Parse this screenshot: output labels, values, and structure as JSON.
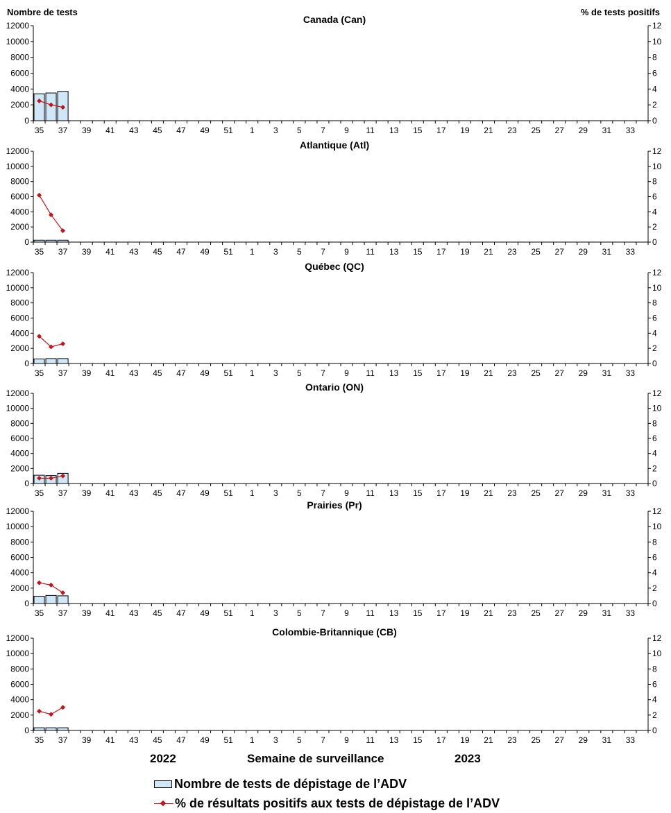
{
  "left_axis_title": "Nombre de tests",
  "right_axis_title": "% de tests positifs",
  "xlabel": "Semaine de surveillance",
  "year_labels": [
    "2022",
    "2023"
  ],
  "legend": {
    "bar_label": "Nombre de tests de dépistage de l’ADV",
    "line_label": "% de résultats positifs aux tests de dépistage de l’ADV"
  },
  "colors": {
    "bar_fill": "#cfe8f8",
    "bar_stroke": "#000000",
    "line": "#c0151b"
  },
  "chart_data": [
    {
      "type": "bar+line",
      "title": "Canada (Can)",
      "weeks": [
        35,
        36,
        37,
        38,
        39,
        40,
        41,
        42,
        43,
        44,
        45,
        46,
        47,
        48,
        49,
        50,
        51,
        52,
        1,
        2,
        3,
        4,
        5,
        6,
        7,
        8,
        9,
        10,
        11,
        12,
        13,
        14,
        15,
        16,
        17,
        18,
        19,
        20,
        21,
        22,
        23,
        24,
        25,
        26,
        27,
        28,
        29,
        30,
        31,
        32,
        33,
        34
      ],
      "tick_labels": [
        "35",
        "37",
        "39",
        "41",
        "43",
        "45",
        "47",
        "49",
        "51",
        "1",
        "3",
        "5",
        "7",
        "9",
        "11",
        "13",
        "15",
        "17",
        "19",
        "21",
        "23",
        "25",
        "27",
        "29",
        "31",
        "33"
      ],
      "y_left_ticks": [
        "0",
        "2000",
        "4000",
        "6000",
        "8000",
        "10000",
        "12000"
      ],
      "y_right_ticks": [
        "0",
        "2",
        "4",
        "6",
        "8",
        "10",
        "12"
      ],
      "ylim_left": [
        0,
        12000
      ],
      "ylim_right": [
        0,
        12
      ],
      "tests": [
        3400,
        3500,
        3700
      ],
      "percent_positive": [
        2.5,
        2.0,
        1.7
      ]
    },
    {
      "type": "bar+line",
      "title": "Atlantique (Atl)",
      "tick_labels": [
        "35",
        "37",
        "39",
        "41",
        "43",
        "45",
        "47",
        "49",
        "51",
        "1",
        "3",
        "5",
        "7",
        "9",
        "11",
        "13",
        "15",
        "17",
        "19",
        "21",
        "23",
        "25",
        "27",
        "29",
        "31",
        "33"
      ],
      "y_left_ticks": [
        "0",
        "2000",
        "4000",
        "6000",
        "8000",
        "10000",
        "12000"
      ],
      "y_right_ticks": [
        "0",
        "2",
        "4",
        "6",
        "8",
        "10",
        "12"
      ],
      "ylim_left": [
        0,
        12000
      ],
      "ylim_right": [
        0,
        12
      ],
      "tests": [
        250,
        250,
        250
      ],
      "percent_positive": [
        6.2,
        3.6,
        1.5
      ]
    },
    {
      "type": "bar+line",
      "title": "Québec (QC)",
      "tick_labels": [
        "35",
        "37",
        "39",
        "41",
        "43",
        "45",
        "47",
        "49",
        "51",
        "1",
        "3",
        "5",
        "7",
        "9",
        "11",
        "13",
        "15",
        "17",
        "19",
        "21",
        "23",
        "25",
        "27",
        "29",
        "31",
        "33"
      ],
      "y_left_ticks": [
        "0",
        "2000",
        "4000",
        "6000",
        "8000",
        "10000",
        "12000"
      ],
      "y_right_ticks": [
        "0",
        "2",
        "4",
        "6",
        "8",
        "10",
        "12"
      ],
      "ylim_left": [
        0,
        12000
      ],
      "ylim_right": [
        0,
        12
      ],
      "tests": [
        600,
        650,
        650
      ],
      "percent_positive": [
        3.6,
        2.2,
        2.6
      ]
    },
    {
      "type": "bar+line",
      "title": "Ontario (ON)",
      "tick_labels": [
        "35",
        "37",
        "39",
        "41",
        "43",
        "45",
        "47",
        "49",
        "51",
        "1",
        "3",
        "5",
        "7",
        "9",
        "11",
        "13",
        "15",
        "17",
        "19",
        "21",
        "23",
        "25",
        "27",
        "29",
        "31",
        "33"
      ],
      "y_left_ticks": [
        "0",
        "2000",
        "4000",
        "6000",
        "8000",
        "10000",
        "12000"
      ],
      "y_right_ticks": [
        "0",
        "2",
        "4",
        "6",
        "8",
        "10",
        "12"
      ],
      "ylim_left": [
        0,
        12000
      ],
      "ylim_right": [
        0,
        12
      ],
      "tests": [
        1100,
        1050,
        1350
      ],
      "percent_positive": [
        0.7,
        0.7,
        1.0
      ]
    },
    {
      "type": "bar+line",
      "title": "Prairies (Pr)",
      "tick_labels": [
        "35",
        "37",
        "39",
        "41",
        "43",
        "45",
        "47",
        "49",
        "51",
        "1",
        "3",
        "5",
        "7",
        "9",
        "11",
        "13",
        "15",
        "17",
        "19",
        "21",
        "23",
        "25",
        "27",
        "29",
        "31",
        "33"
      ],
      "y_left_ticks": [
        "0",
        "2000",
        "4000",
        "6000",
        "8000",
        "10000",
        "12000"
      ],
      "y_right_ticks": [
        "0",
        "2",
        "4",
        "6",
        "8",
        "10",
        "12"
      ],
      "ylim_left": [
        0,
        12000
      ],
      "ylim_right": [
        0,
        12
      ],
      "tests": [
        950,
        1050,
        1000
      ],
      "percent_positive": [
        2.7,
        2.4,
        1.4
      ]
    },
    {
      "type": "bar+line",
      "title": "Colombie-Britannique (CB)",
      "tick_labels": [
        "35",
        "37",
        "39",
        "41",
        "43",
        "45",
        "47",
        "49",
        "51",
        "1",
        "3",
        "5",
        "7",
        "9",
        "11",
        "13",
        "15",
        "17",
        "19",
        "21",
        "23",
        "25",
        "27",
        "29",
        "31",
        "33"
      ],
      "y_left_ticks": [
        "0",
        "2000",
        "4000",
        "6000",
        "8000",
        "10000",
        "12000"
      ],
      "y_right_ticks": [
        "0",
        "2",
        "4",
        "6",
        "8",
        "10",
        "12"
      ],
      "ylim_left": [
        0,
        12000
      ],
      "ylim_right": [
        0,
        12
      ],
      "tests": [
        350,
        350,
        350
      ],
      "percent_positive": [
        2.5,
        2.1,
        3.0
      ]
    }
  ]
}
